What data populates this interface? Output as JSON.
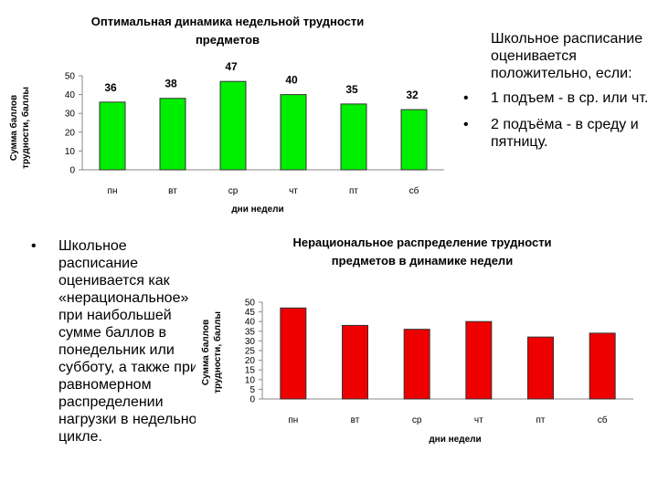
{
  "chart_data": [
    {
      "type": "bar",
      "title_lines": [
        "Оптимальная динамика недельной трудности",
        "предметов"
      ],
      "ylabel_lines": [
        "Сумма баллов",
        "трудности, баллы"
      ],
      "xlabel": "дни недели",
      "categories": [
        "пн",
        "вт",
        "ср",
        "чт",
        "пт",
        "сб"
      ],
      "values": [
        36,
        38,
        47,
        40,
        35,
        32
      ],
      "data_labels": [
        "36",
        "38",
        "47",
        "40",
        "35",
        "32"
      ],
      "ylim": [
        0,
        50
      ],
      "yticks": [
        0,
        10,
        20,
        30,
        40,
        50
      ],
      "bar_color": "#00ee00",
      "show_data_labels": true
    },
    {
      "type": "bar",
      "title_lines": [
        "Нерациональное распределение трудности",
        "предметов в динамике недели"
      ],
      "ylabel_lines": [
        "Сумма баллов",
        "трудности, баллы"
      ],
      "xlabel": "дни недели",
      "categories": [
        "пн",
        "вт",
        "ср",
        "чт",
        "пт",
        "сб"
      ],
      "values": [
        47,
        38,
        36,
        40,
        32,
        34
      ],
      "ylim": [
        0,
        50
      ],
      "yticks": [
        0,
        5,
        10,
        15,
        20,
        25,
        30,
        35,
        40,
        45,
        50
      ],
      "bar_color": "#ee0000",
      "show_data_labels": false
    }
  ],
  "text_right": {
    "intro": "Школьное расписание оценивается положительно, если:",
    "bullets": [
      "1 подъем - в ср. или чт.",
      "2 подъёма - в среду и пятницу."
    ]
  },
  "text_left": {
    "bullets": [
      "Школьное расписание оценивается как «нерациональное» при наибольшей сумме баллов в понедельник или субботу, а также при равномерном распределении нагрузки в недельном цикле."
    ]
  },
  "bullet_symbol": "•"
}
